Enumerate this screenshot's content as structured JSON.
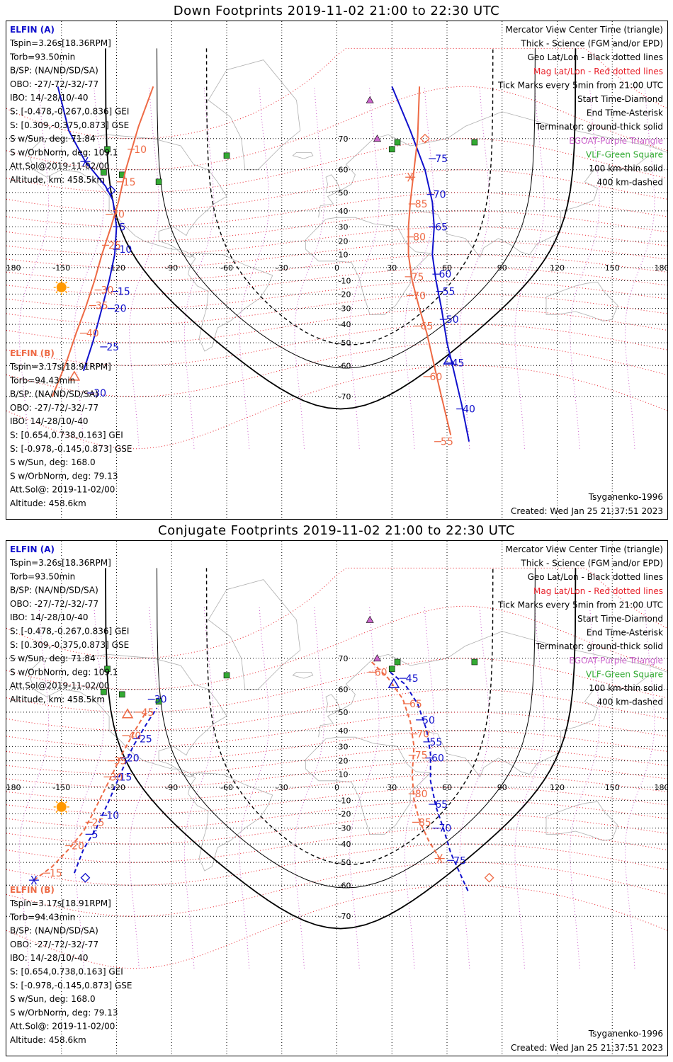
{
  "panels": [
    {
      "id": "down",
      "title": "Down Footprints 2019-11-02 21:00 to 22:30 UTC",
      "elfin_a": {
        "header": "ELFIN (A)",
        "lines": [
          "Tspin=3.26s[18.36RPM]",
          "Torb=93.50min",
          "B/SP: (NA/ND/SD/SA)",
          "OBO: -27/-72/-32/-77",
          "IBO: 14/-28/10/-40",
          "S: [-0.478,-0.267,0.836] GEI",
          "S: [0.309,-0.375,0.873] GSE",
          "S w/Sun, deg: 71.84",
          "S w/OrbNorm, deg: 109.1",
          "Att.Sol@2019-11-02/00",
          "Altitude, km: 458.5km"
        ]
      },
      "elfin_b": {
        "header": "ELFIN (B)",
        "lines": [
          "Tspin=3.17s[18.91RPM]",
          "Torb=94.43min",
          "B/SP: (NA/ND/SD/SA)",
          "OBO: -27/-72/-32/-77",
          "IBO: 14/-28/10/-40",
          "S: [0.654,0.738,0.163] GEI",
          "S: [-0.978,-0.145,0.873] GSE",
          "S w/Sun, deg: 168.0",
          "S w/OrbNorm, deg: 79.13",
          "Att.Sol@: 2019-11-02/00",
          "Altitude: 458.6km"
        ]
      },
      "legend": [
        {
          "text": "Mercator View Center Time (triangle)",
          "color": "#000000"
        },
        {
          "text": "Thick - Science (FGM and/or EPD)",
          "color": "#000000"
        },
        {
          "text": "Geo Lat/Lon - Black dotted lines",
          "color": "#000000"
        },
        {
          "text": "Mag Lat/Lon - Red dotted lines",
          "color": "#e8202a"
        },
        {
          "text": "Tick Marks every 5min from 21:00 UTC",
          "color": "#000000"
        },
        {
          "text": "Start Time-Diamond",
          "color": "#000000"
        },
        {
          "text": "End Time-Asterisk",
          "color": "#000000"
        },
        {
          "text": "Terminator: ground-thick solid",
          "color": "#000000"
        },
        {
          "text": "EGOAT-Purple Triangle",
          "color": "#cc66cc"
        },
        {
          "text": "VLF-Green Square",
          "color": "#33aa33"
        },
        {
          "text": "100 km-thin solid",
          "color": "#000000"
        },
        {
          "text": "400 km-dashed",
          "color": "#000000"
        }
      ],
      "model": "Tsyganenko-1996",
      "created": "Created: Wed Jan 25 21:37:51 2023"
    },
    {
      "id": "conjugate",
      "title": "Conjugate Footprints 2019-11-02 21:00 to 22:30 UTC",
      "elfin_a": {
        "header": "ELFIN (A)",
        "lines": [
          "Tspin=3.26s[18.36RPM]",
          "Torb=93.50min",
          "B/SP: (NA/ND/SD/SA)",
          "OBO: -27/-72/-32/-77",
          "IBO: 14/-28/10/-40",
          "S: [-0.478,-0.267,0.836] GEI",
          "S: [0.309,-0.375,0.873] GSE",
          "S w/Sun, deg: 71.84",
          "S w/OrbNorm, deg: 109.1",
          "Att.Sol@2019-11-02/00",
          "Altitude, km: 458.5km"
        ]
      },
      "elfin_b": {
        "header": "ELFIN (B)",
        "lines": [
          "Tspin=3.17s[18.91RPM]",
          "Torb=94.43min",
          "B/SP: (NA/ND/SD/SA)",
          "OBO: -27/-72/-32/-77",
          "IBO: 14/-28/10/-40",
          "S: [0.654,0.738,0.163] GEI",
          "S: [-0.978,-0.145,0.873] GSE",
          "S w/Sun, deg: 168.0",
          "S w/OrbNorm, deg: 79.13",
          "Att.Sol@: 2019-11-02/00",
          "Altitude: 458.6km"
        ]
      },
      "legend": [
        {
          "text": "Mercator View Center Time (triangle)",
          "color": "#000000"
        },
        {
          "text": "Thick - Science (FGM and/or EPD)",
          "color": "#000000"
        },
        {
          "text": "Geo Lat/Lon - Black dotted lines",
          "color": "#000000"
        },
        {
          "text": "Mag Lat/Lon - Red dotted lines",
          "color": "#e8202a"
        },
        {
          "text": "Tick Marks every 5min from 21:00 UTC",
          "color": "#000000"
        },
        {
          "text": "Start Time-Diamond",
          "color": "#000000"
        },
        {
          "text": "End Time-Asterisk",
          "color": "#000000"
        },
        {
          "text": "Terminator: ground-thick solid",
          "color": "#000000"
        },
        {
          "text": "EGOAT-Purple Triangle",
          "color": "#cc66cc"
        },
        {
          "text": "VLF-Green Square",
          "color": "#33aa33"
        },
        {
          "text": "100 km-thin solid",
          "color": "#000000"
        },
        {
          "text": "400 km-dashed",
          "color": "#000000"
        }
      ],
      "model": "Tsyganenko-1996",
      "created": "Created: Wed Jan 25 21:37:51 2023"
    }
  ],
  "colors": {
    "elfin_a": "#1010cc",
    "elfin_b": "#ee6a45",
    "mag_grid": "#e8202a",
    "geo_grid": "#000000",
    "egoat": "#cc66cc",
    "vlf": "#33aa33",
    "sun": "#ff9900",
    "coast": "#b0b0b0"
  },
  "chart_data": [
    {
      "type": "line",
      "title": "Down Footprints 2019-11-02 21:00 to 22:30 UTC",
      "projection": "mercator",
      "xlim": [
        -180,
        180
      ],
      "ylim": [
        -80,
        80
      ],
      "lon_ticks": [
        -180,
        -150,
        -120,
        -90,
        -60,
        -30,
        0,
        30,
        60,
        90,
        120,
        150,
        180
      ],
      "lat_ticks": [
        -70,
        -60,
        -50,
        -40,
        -30,
        -20,
        -10,
        0,
        10,
        20,
        30,
        40,
        50,
        60,
        70
      ],
      "series": [
        {
          "name": "ELFIN (A)",
          "style": "solid",
          "lon": [
            -152,
            -146,
            -137,
            -126,
            -122,
            -120,
            -121,
            -124,
            -128,
            -133,
            -138
          ],
          "lat": [
            80,
            72,
            63,
            53,
            46,
            30,
            10,
            -10,
            -30,
            -50,
            -62
          ]
        },
        {
          "name": "ELFIN (A)",
          "style": "solid",
          "lon": [
            30,
            40,
            48,
            52,
            53,
            52,
            54,
            57,
            60,
            63,
            68,
            72
          ],
          "lat": [
            80,
            72,
            60,
            45,
            30,
            10,
            -10,
            -30,
            -50,
            -60,
            -72,
            -79
          ]
        },
        {
          "name": "ELFIN (B)",
          "style": "solid",
          "lon": [
            -100,
            -108,
            -115,
            -119,
            -123,
            -128,
            -132,
            -137,
            -142,
            -147,
            -155
          ],
          "lat": [
            80,
            73,
            60,
            45,
            30,
            10,
            -10,
            -30,
            -45,
            -58,
            -70
          ]
        },
        {
          "name": "ELFIN (B)",
          "style": "solid",
          "lon": [
            45,
            44,
            42,
            40,
            39,
            39,
            41,
            45,
            49,
            53,
            57,
            62
          ],
          "lat": [
            80,
            70,
            60,
            45,
            30,
            10,
            -10,
            -30,
            -45,
            -60,
            -70,
            -78
          ]
        }
      ],
      "tick_labels_a": [
        {
          "label": "75",
          "lon": 52,
          "lat": 64
        },
        {
          "label": "70",
          "lon": 51,
          "lat": 49
        },
        {
          "label": "65",
          "lon": 52,
          "lat": 30
        },
        {
          "label": "60",
          "lon": 54,
          "lat": -5
        },
        {
          "label": "55",
          "lon": 56,
          "lat": -18
        },
        {
          "label": "50",
          "lon": 58,
          "lat": -37
        },
        {
          "label": "45",
          "lon": 61,
          "lat": -59
        },
        {
          "label": "40",
          "lon": 67,
          "lat": -73
        },
        {
          "label": "5",
          "lon": -120,
          "lat": 30
        },
        {
          "label": "10",
          "lon": -120,
          "lat": 14
        },
        {
          "label": "15",
          "lon": -121,
          "lat": -18
        },
        {
          "label": "20",
          "lon": -123,
          "lat": -30
        },
        {
          "label": "25",
          "lon": -127,
          "lat": -52
        },
        {
          "label": "30",
          "lon": -134,
          "lat": -69
        }
      ],
      "tick_labels_b": [
        {
          "label": "10",
          "lon": -112,
          "lat": 67
        },
        {
          "label": "15",
          "lon": -118,
          "lat": 55
        },
        {
          "label": "20",
          "lon": -124,
          "lat": 38
        },
        {
          "label": "25",
          "lon": -126,
          "lat": 17
        },
        {
          "label": "30",
          "lon": -130,
          "lat": -17
        },
        {
          "label": "35",
          "lon": -133,
          "lat": -28
        },
        {
          "label": "40",
          "lon": -138,
          "lat": -45
        },
        {
          "label": "85",
          "lon": 41,
          "lat": 44
        },
        {
          "label": "80",
          "lon": 40,
          "lat": 23
        },
        {
          "label": "75",
          "lon": 39,
          "lat": -7
        },
        {
          "label": "70",
          "lon": 40,
          "lat": -21
        },
        {
          "label": "65",
          "lon": 44,
          "lat": -41
        },
        {
          "label": "60",
          "lon": 49,
          "lat": -64
        },
        {
          "label": "55",
          "lon": 55,
          "lat": -79
        }
      ]
    },
    {
      "type": "line",
      "title": "Conjugate Footprints 2019-11-02 21:00 to 22:30 UTC",
      "projection": "mercator",
      "xlim": [
        -180,
        180
      ],
      "ylim": [
        -80,
        80
      ],
      "lon_ticks": [
        -180,
        -150,
        -120,
        -90,
        -60,
        -30,
        0,
        30,
        60,
        90,
        120,
        150,
        180
      ],
      "lat_ticks": [
        -70,
        -60,
        -50,
        -40,
        -30,
        -20,
        -10,
        0,
        10,
        20,
        30,
        40,
        50,
        60,
        70
      ],
      "series": [
        {
          "name": "ELFIN (A)",
          "style": "dashed",
          "lon": [
            -143,
            -138,
            -131,
            -124,
            -118,
            -111,
            -103,
            -98
          ],
          "lat": [
            -55,
            -43,
            -30,
            -10,
            10,
            30,
            45,
            52
          ]
        },
        {
          "name": "ELFIN (A)",
          "style": "dashed",
          "lon": [
            29,
            37,
            44,
            49,
            51,
            51,
            54,
            58,
            62,
            67,
            72
          ],
          "lat": [
            66,
            62,
            54,
            40,
            25,
            5,
            -15,
            -30,
            -45,
            -55,
            -63
          ]
        },
        {
          "name": "ELFIN (B)",
          "style": "dashed",
          "lon": [
            -165,
            -155,
            -146,
            -138,
            -133,
            -124,
            -117,
            -110,
            -104
          ],
          "lat": [
            -58,
            -52,
            -43,
            -32,
            -20,
            5,
            25,
            40,
            50
          ]
        },
        {
          "name": "ELFIN (B)",
          "style": "dashed",
          "lon": [
            19,
            28,
            36,
            40,
            42,
            41,
            42,
            45,
            50,
            56
          ],
          "lat": [
            69,
            64,
            56,
            45,
            30,
            10,
            -10,
            -25,
            -38,
            -48
          ]
        }
      ],
      "tick_labels_a": [
        {
          "label": "45",
          "lon": 36,
          "lat": 64
        },
        {
          "label": "50",
          "lon": 45,
          "lat": 46
        },
        {
          "label": "55",
          "lon": 49,
          "lat": 33
        },
        {
          "label": "60",
          "lon": 50,
          "lat": 22
        },
        {
          "label": "65",
          "lon": 52,
          "lat": -13
        },
        {
          "label": "70",
          "lon": 54,
          "lat": -30
        },
        {
          "label": "75",
          "lon": 62,
          "lat": -49
        },
        {
          "label": "5",
          "lon": -135,
          "lat": -34
        },
        {
          "label": "10",
          "lon": -127,
          "lat": -21
        },
        {
          "label": "15",
          "lon": -120,
          "lat": 8
        },
        {
          "label": "20",
          "lon": -116,
          "lat": 22
        },
        {
          "label": "25",
          "lon": -109,
          "lat": 35
        },
        {
          "label": "30",
          "lon": -101,
          "lat": 56
        }
      ],
      "tick_labels_b": [
        {
          "label": "15",
          "lon": -158,
          "lat": -55
        },
        {
          "label": "20",
          "lon": -146,
          "lat": -41
        },
        {
          "label": "25",
          "lon": -135,
          "lat": -26
        },
        {
          "label": "30",
          "lon": -125,
          "lat": 8
        },
        {
          "label": "35",
          "lon": -123,
          "lat": 20
        },
        {
          "label": "40",
          "lon": -115,
          "lat": 37
        },
        {
          "label": "45",
          "lon": -108,
          "lat": 50
        },
        {
          "label": "60",
          "lon": 19,
          "lat": 66
        },
        {
          "label": "65",
          "lon": 38,
          "lat": 54
        },
        {
          "label": "70",
          "lon": 42,
          "lat": 38
        },
        {
          "label": "75",
          "lon": 41,
          "lat": 24
        },
        {
          "label": "80",
          "lon": 41,
          "lat": -5
        },
        {
          "label": "85",
          "lon": 43,
          "lat": -26
        }
      ],
      "start_diamond_b_lon": 83,
      "start_diamond_b_lat": -57
    }
  ]
}
